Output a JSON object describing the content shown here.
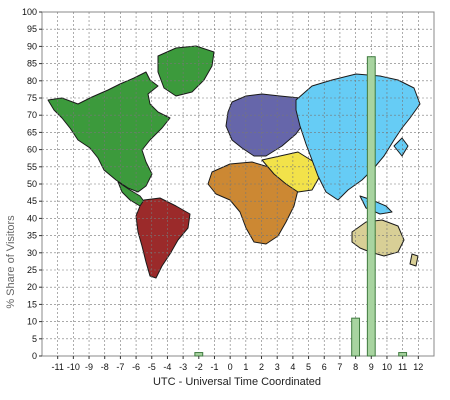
{
  "chart_data": {
    "type": "bar",
    "xlabel": "UTC - Universal Time Coordinated",
    "ylabel": "% Share of Visitors",
    "ylim": [
      0,
      100
    ],
    "yticks": [
      0,
      5,
      10,
      15,
      20,
      25,
      30,
      35,
      40,
      45,
      50,
      55,
      60,
      65,
      70,
      75,
      80,
      85,
      90,
      95,
      100
    ],
    "xlim": [
      -12,
      13
    ],
    "categories": [
      -11,
      -10,
      -9,
      -8,
      -7,
      -6,
      -5,
      -4,
      -3,
      -2,
      -1,
      0,
      1,
      2,
      3,
      4,
      5,
      6,
      7,
      8,
      9,
      10,
      11,
      12
    ],
    "category_labels": [
      "-11",
      "-10",
      "-9",
      "-8",
      "-7",
      "-6",
      "-5",
      "-4",
      "-3",
      "-2",
      "-1",
      "0",
      "1",
      "2",
      "3",
      "4",
      "5",
      "6",
      "7",
      "8",
      "9",
      "10",
      "11",
      "12"
    ],
    "values": [
      0,
      0,
      0,
      0,
      0,
      0,
      0,
      0,
      0,
      1,
      0,
      0,
      0,
      0,
      0,
      0,
      0,
      0,
      0,
      11,
      87,
      0,
      1,
      0
    ],
    "grid": true,
    "bar_color": "#a8d4a0",
    "bar_stroke": "#3f7a3f",
    "background": "world map",
    "region_colors": {
      "north_america": "#3c9a3c",
      "south_america": "#9b2a2a",
      "europe": "#6666aa",
      "africa": "#cc8833",
      "middle_east": "#f2e24a",
      "asia": "#66ccf5",
      "oceania": "#d8cf96"
    }
  }
}
